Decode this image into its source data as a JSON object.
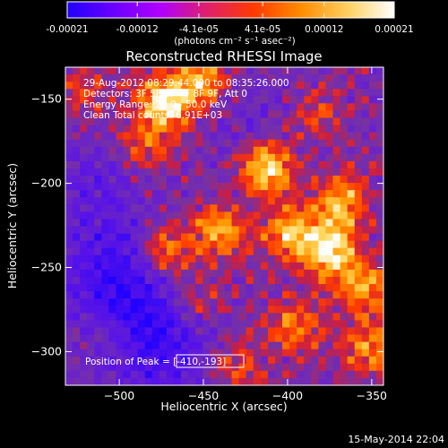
{
  "colorbar": {
    "tick_labels": [
      "-0.00021",
      "-0.00012",
      "-4.1e-05",
      "4.1e-05",
      "0.00012",
      "0.00021"
    ],
    "tick_values": [
      -0.00021,
      -0.00012,
      -4.1e-05,
      4.1e-05,
      0.00012,
      0.00021
    ],
    "range": [
      -0.00021,
      0.00021
    ],
    "units_label": "(photons cm⁻² s⁻¹ asec⁻²)",
    "colors": [
      "#2000ff",
      "#6a00ff",
      "#b000ff",
      "#e0206a",
      "#ff3a00",
      "#ff8c00",
      "#ffd060",
      "#ffffff"
    ]
  },
  "chart_data": {
    "type": "heatmap",
    "title": "Reconstructed RHESSI Image",
    "xlabel": "Heliocentric X (arcsec)",
    "ylabel": "Heliocentric Y (arcsec)",
    "xlim": [
      -532,
      -343
    ],
    "ylim": [
      -320,
      -131
    ],
    "x_ticks": [
      -500,
      -450,
      -400,
      -350
    ],
    "y_ticks": [
      -150,
      -200,
      -250,
      -300
    ],
    "x_tick_labels": [
      "−500",
      "−450",
      "−400",
      "−350"
    ],
    "y_tick_labels": [
      "−150",
      "−200",
      "−250",
      "−300"
    ],
    "annotations": [
      "29-Aug-2012 08:29:44.000 to 08:35:26.000",
      "Detectors: 3F 5F 6F 7F 8F 9F, Att 0",
      "Energy Range: 25.0 - 50.0 keV",
      "Clean    Total counts: 6.91E+03"
    ],
    "peak_label": "Position of Peak = [-410,-193]",
    "peak_position": [
      -410,
      -193
    ],
    "grid": false,
    "bright_sources": [
      {
        "x": -473,
        "y": -152,
        "intensity": 0.00021
      },
      {
        "x": -452,
        "y": -140,
        "intensity": 0.00016
      },
      {
        "x": -412,
        "y": -191,
        "intensity": 0.00021
      },
      {
        "x": -440,
        "y": -228,
        "intensity": 0.00015
      },
      {
        "x": -472,
        "y": -240,
        "intensity": 0.00014
      },
      {
        "x": -398,
        "y": -230,
        "intensity": 0.00017
      },
      {
        "x": -375,
        "y": -240,
        "intensity": 0.00021
      },
      {
        "x": -368,
        "y": -212,
        "intensity": 0.00016
      },
      {
        "x": -355,
        "y": -262,
        "intensity": 0.00015
      },
      {
        "x": -395,
        "y": -285,
        "intensity": 0.00012
      },
      {
        "x": -350,
        "y": -298,
        "intensity": 0.00013
      },
      {
        "x": -485,
        "y": -178,
        "intensity": 0.0001
      },
      {
        "x": -455,
        "y": -270,
        "intensity": 9e-05
      },
      {
        "x": -430,
        "y": -308,
        "intensity": 9e-05
      },
      {
        "x": -520,
        "y": -145,
        "intensity": 7e-05
      },
      {
        "x": -505,
        "y": -290,
        "intensity": 6e-05
      },
      {
        "x": -383,
        "y": -160,
        "intensity": 8e-05
      }
    ],
    "negative_regions": [
      {
        "x": -505,
        "y": -252,
        "intensity": -0.00012
      },
      {
        "x": -490,
        "y": -285,
        "intensity": -0.0001
      },
      {
        "x": -470,
        "y": -300,
        "intensity": -8e-05
      },
      {
        "x": -512,
        "y": -200,
        "intensity": -6e-05
      },
      {
        "x": -420,
        "y": -160,
        "intensity": -4e-05
      }
    ]
  },
  "footer": {
    "timestamp": "15-May-2014 22:04"
  }
}
